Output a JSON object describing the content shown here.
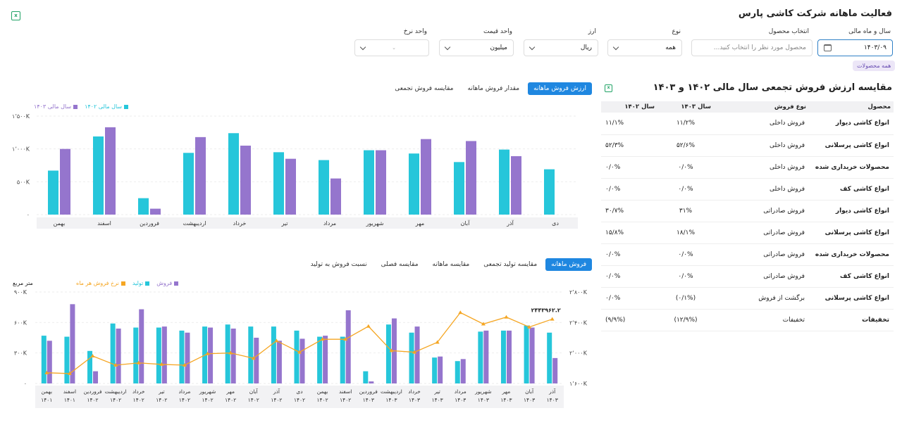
{
  "header": {
    "title": "فعالیت ماهانه شرکت کاشی پارس"
  },
  "filters": {
    "year_month": {
      "label": "سال و ماه مالی",
      "value": "۱۴۰۳/۰۹"
    },
    "product": {
      "label": "انتخاب محصول",
      "placeholder": "محصول مورد نظر را انتخاب کنید..."
    },
    "type": {
      "label": "نوع",
      "value": "همه"
    },
    "currency": {
      "label": "ارز",
      "value": "ریال"
    },
    "price_unit": {
      "label": "واحد قیمت",
      "value": "میلیون"
    },
    "rate_unit": {
      "label": "واحد نرخ",
      "value": ""
    },
    "all_products_chip": "همه محصولات"
  },
  "sales_table": {
    "title": "مقایسه ارزش فروش تجمعی سال مالی ۱۴۰۲ و ۱۴۰۳",
    "headers": {
      "product": "محصول",
      "sale_type": "نوع فروش",
      "y1403": "سال ۱۴۰۳",
      "y1402": "سال ۱۴۰۲"
    },
    "rows": [
      {
        "product": "انواع کاشی دیوار",
        "sale_type": "فروش داخلی",
        "y1403": "۱۱/۲%",
        "y1402": "۱۱/۱%"
      },
      {
        "product": "انواع کاشی پرسلانی",
        "sale_type": "فروش داخلی",
        "y1403": "۵۲/۶%",
        "y1402": "۵۲/۳%"
      },
      {
        "product": "محصولات خریداری شده",
        "sale_type": "فروش داخلی",
        "y1403": "۰/۰%",
        "y1402": "۰/۰%"
      },
      {
        "product": "انواع کاشی کف",
        "sale_type": "فروش داخلی",
        "y1403": "۰/۰%",
        "y1402": "۰/۰%"
      },
      {
        "product": "انواع کاشی دیوار",
        "sale_type": "فروش صادراتی",
        "y1403": "۳۱%",
        "y1402": "۳۰/۷%"
      },
      {
        "product": "انواع کاشی پرسلانی",
        "sale_type": "فروش صادراتی",
        "y1403": "۱۸/۱%",
        "y1402": "۱۵/۸%"
      },
      {
        "product": "محصولات خریداری شده",
        "sale_type": "فروش صادراتی",
        "y1403": "۰/۰%",
        "y1402": "۰/۰%"
      },
      {
        "product": "انواع کاشی کف",
        "sale_type": "فروش صادراتی",
        "y1403": "۰/۰%",
        "y1402": "۰/۰%"
      },
      {
        "product": "انواع کاشی پرسلانی",
        "sale_type": "برگشت از فروش",
        "y1403": "(۰/۱%)",
        "y1402": "۰/۰%"
      },
      {
        "product": "تخفیفات",
        "sale_type": "تخفیفات",
        "y1403": "(۱۲/۹%)",
        "y1402": "(۹/۹%)"
      }
    ]
  },
  "top_chart_tabs": [
    "ارزش فروش ماهانه",
    "مقدار فروش ماهانه",
    "مقایسه فروش تجمعی"
  ],
  "bottom_chart_tabs": [
    "فروش ماهانه",
    "مقایسه تولید تجمعی",
    "مقایسه ماهانه",
    "مقایسه فصلی",
    "نسبت فروش به تولید"
  ],
  "colors": {
    "teal": "#26c6da",
    "purple": "#9575cd",
    "orange": "#f5a623",
    "blue": "#1f87e0"
  },
  "chart_data": [
    {
      "type": "bar",
      "legend_placement": "top-left",
      "categories": [
        "دی",
        "آذر",
        "آبان",
        "مهر",
        "شهریور",
        "مرداد",
        "تیر",
        "خرداد",
        "اردیبهشت",
        "فروردین",
        "اسفند",
        "بهمن"
      ],
      "series": [
        {
          "name": "سال مالی ۱۴۰۲",
          "color": "#26c6da",
          "values": [
            690,
            990,
            800,
            930,
            980,
            830,
            950,
            1240,
            940,
            250,
            1190,
            670
          ]
        },
        {
          "name": "سال مالی ۱۴۰۳",
          "color": "#9575cd",
          "values": [
            null,
            890,
            1120,
            1150,
            980,
            550,
            850,
            1050,
            1180,
            90,
            1330,
            1000
          ]
        }
      ],
      "ylim": [
        0,
        1500
      ],
      "yticks": [
        {
          "value": 0,
          "label": "۰"
        },
        {
          "value": 500,
          "label": "۵۰۰K"
        },
        {
          "value": 1000,
          "label": "۱٬۰۰۰K"
        },
        {
          "value": 1500,
          "label": "۱٬۵۰۰K"
        }
      ],
      "grid": true
    },
    {
      "type": "bar",
      "legend_placement": "top-left",
      "left_axis_label": "متر مربع",
      "categories": [
        "آذر ۱۴۰۳",
        "آبان ۱۴۰۳",
        "مهر ۱۴۰۳",
        "شهریور ۱۴۰۳",
        "مرداد ۱۴۰۳",
        "تیر ۱۴۰۳",
        "خرداد ۱۴۰۳",
        "اردیبهشت ۱۴۰۳",
        "فروردین ۱۴۰۳",
        "اسفند ۱۴۰۲",
        "بهمن ۱۴۰۲",
        "دی ۱۴۰۲",
        "آذر ۱۴۰۲",
        "آبان ۱۴۰۲",
        "مهر ۱۴۰۲",
        "شهریور ۱۴۰۲",
        "مرداد ۱۴۰۲",
        "تیر ۱۴۰۲",
        "خرداد ۱۴۰۲",
        "اردیبهشت ۱۴۰۲",
        "فروردین ۱۴۰۲",
        "اسفند ۱۴۰۱",
        "بهمن ۱۴۰۱"
      ],
      "series": [
        {
          "name": "فروش",
          "color": "#9575cd",
          "axis": "left",
          "values": [
            250,
            550,
            520,
            520,
            240,
            265,
            560,
            640,
            20,
            720,
            470,
            440,
            420,
            450,
            540,
            550,
            500,
            560,
            730,
            540,
            120,
            780,
            420
          ]
        },
        {
          "name": "تولید",
          "color": "#26c6da",
          "axis": "left",
          "values": [
            500,
            570,
            520,
            510,
            220,
            255,
            500,
            580,
            120,
            460,
            460,
            520,
            560,
            560,
            580,
            560,
            520,
            550,
            550,
            590,
            320,
            460,
            470
          ]
        },
        {
          "name": "نرخ فروش هر ماه",
          "color": "#f5a623",
          "axis": "right",
          "type": "line",
          "values": [
            2443962.2,
            2340000,
            2470000,
            2380000,
            2530000,
            2140000,
            2010000,
            2030000,
            2350000,
            2180000,
            2180000,
            2010000,
            2160000,
            1930000,
            2000000,
            1990000,
            1840000,
            1850000,
            1870000,
            1840000,
            1960000,
            1730000,
            1740000
          ]
        }
      ],
      "ylim_left": [
        0,
        900
      ],
      "yticks_left": [
        {
          "value": 0,
          "label": "۰"
        },
        {
          "value": 300,
          "label": "۳۰۰K"
        },
        {
          "value": 600,
          "label": "۶۰۰K"
        },
        {
          "value": 900,
          "label": "۹۰۰K"
        }
      ],
      "ylim_right": [
        1600000,
        2800000
      ],
      "yticks_right": [
        {
          "value": 1600000,
          "label": "۱٬۶۰۰K"
        },
        {
          "value": 2000000,
          "label": "۲٬۰۰۰K"
        },
        {
          "value": 2400000,
          "label": "۲٬۴۰۰K"
        },
        {
          "value": 2800000,
          "label": "۲٬۸۰۰K"
        }
      ],
      "annotation": {
        "index": 0,
        "text": "۲۴۴۳۹۶۲.۲"
      },
      "grid": true
    }
  ]
}
